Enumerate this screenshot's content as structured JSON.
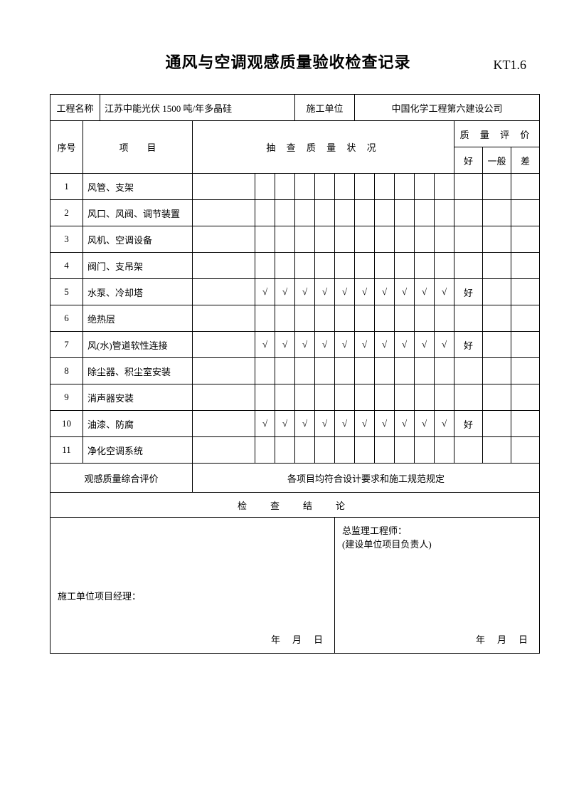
{
  "title": "通风与空调观感质量验收检查记录",
  "doc_code": "KT1.6",
  "header": {
    "project_name_label": "工程名称",
    "project_name_value": "江苏中能光伏 1500 吨/年多晶硅",
    "construction_unit_label": "施工单位",
    "construction_unit_value": "中国化学工程第六建设公司"
  },
  "table_header": {
    "seq": "序号",
    "item": "项　　目",
    "status": "抽 查 质 量 状 况",
    "quality": "质 量 评 价",
    "good": "好",
    "normal": "一般",
    "bad": "差"
  },
  "rows": [
    {
      "no": "1",
      "item": "风管、支架",
      "checks": [
        "",
        "",
        "",
        "",
        "",
        "",
        "",
        "",
        "",
        ""
      ],
      "good": "",
      "normal": "",
      "bad": ""
    },
    {
      "no": "2",
      "item": "风口、风阀、调节装置",
      "checks": [
        "",
        "",
        "",
        "",
        "",
        "",
        "",
        "",
        "",
        ""
      ],
      "good": "",
      "normal": "",
      "bad": ""
    },
    {
      "no": "3",
      "item": "风机、空调设备",
      "checks": [
        "",
        "",
        "",
        "",
        "",
        "",
        "",
        "",
        "",
        ""
      ],
      "good": "",
      "normal": "",
      "bad": ""
    },
    {
      "no": "4",
      "item": "阀门、支吊架",
      "checks": [
        "",
        "",
        "",
        "",
        "",
        "",
        "",
        "",
        "",
        ""
      ],
      "good": "",
      "normal": "",
      "bad": ""
    },
    {
      "no": "5",
      "item": "水泵、冷却塔",
      "checks": [
        "√",
        "√",
        "√",
        "√",
        "√",
        "√",
        "√",
        "√",
        "√",
        "√"
      ],
      "good": "好",
      "normal": "",
      "bad": ""
    },
    {
      "no": "6",
      "item": "绝热层",
      "checks": [
        "",
        "",
        "",
        "",
        "",
        "",
        "",
        "",
        "",
        ""
      ],
      "good": "",
      "normal": "",
      "bad": ""
    },
    {
      "no": "7",
      "item": "风(水)管道软性连接",
      "checks": [
        "√",
        "√",
        "√",
        "√",
        "√",
        "√",
        "√",
        "√",
        "√",
        "√"
      ],
      "good": "好",
      "normal": "",
      "bad": ""
    },
    {
      "no": "8",
      "item": "除尘器、积尘室安装",
      "checks": [
        "",
        "",
        "",
        "",
        "",
        "",
        "",
        "",
        "",
        ""
      ],
      "good": "",
      "normal": "",
      "bad": ""
    },
    {
      "no": "9",
      "item": "消声器安装",
      "checks": [
        "",
        "",
        "",
        "",
        "",
        "",
        "",
        "",
        "",
        ""
      ],
      "good": "",
      "normal": "",
      "bad": ""
    },
    {
      "no": "10",
      "item": "油漆、防腐",
      "checks": [
        "√",
        "√",
        "√",
        "√",
        "√",
        "√",
        "√",
        "√",
        "√",
        "√"
      ],
      "good": "好",
      "normal": "",
      "bad": ""
    },
    {
      "no": "11",
      "item": "净化空调系统",
      "checks": [
        "",
        "",
        "",
        "",
        "",
        "",
        "",
        "",
        "",
        ""
      ],
      "good": "",
      "normal": "",
      "bad": ""
    }
  ],
  "overall": {
    "label": "观感质量综合评价",
    "value": "各项目均符合设计要求和施工规范规定"
  },
  "conclusion_header": "检　查　结　论",
  "sig": {
    "left_label": "施工单位项目经理：",
    "right_label1": "总监理工程师：",
    "right_label2": "(建设单位项目负责人)",
    "date": "年　月　日"
  }
}
